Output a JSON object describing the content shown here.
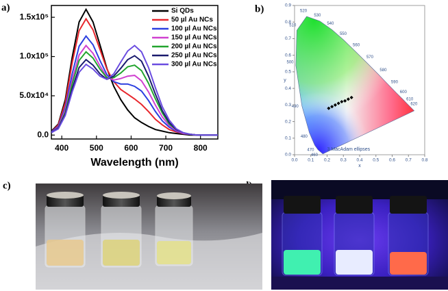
{
  "panels": {
    "labels": [
      "a)",
      "b)",
      "c)",
      "d)"
    ]
  },
  "chart_data": [
    {
      "type": "line",
      "xlabel": "Wavelength (nm)",
      "x": [
        370,
        390,
        410,
        430,
        450,
        470,
        490,
        510,
        530,
        550,
        570,
        590,
        610,
        630,
        650,
        670,
        690,
        710,
        730,
        750,
        770,
        790,
        810,
        830,
        850
      ],
      "xlim": [
        370,
        850
      ],
      "xticks": [
        400,
        500,
        600,
        700,
        800
      ],
      "ylim": [
        -5000,
        165000
      ],
      "yticks": [
        {
          "value": 0,
          "label": "0.0"
        },
        {
          "value": 50000,
          "label": "5.0x10⁴"
        },
        {
          "value": 100000,
          "label": "1.0x10⁵"
        },
        {
          "value": 150000,
          "label": "1.5x10⁵"
        }
      ],
      "legend": "upper right",
      "series": [
        {
          "name": "Si QDs",
          "color": "#000000",
          "values": [
            5000,
            14000,
            45000,
            99000,
            144000,
            160000,
            144000,
            115000,
            85000,
            62000,
            45000,
            32000,
            22000,
            16000,
            11000,
            7000,
            5000,
            3000,
            2000,
            1000,
            0,
            0,
            0,
            0,
            0
          ]
        },
        {
          "name": "50 µl Au NCs",
          "color": "#e8262c",
          "values": [
            4000,
            13000,
            41000,
            92000,
            133000,
            148000,
            134000,
            109000,
            84000,
            68000,
            58000,
            52000,
            46000,
            39000,
            30000,
            20000,
            13000,
            7000,
            4000,
            2000,
            1000,
            0,
            0,
            0,
            0
          ]
        },
        {
          "name": "100 µl Au NCs",
          "color": "#2b3fe0",
          "values": [
            4000,
            11000,
            35000,
            78000,
            113000,
            126000,
            115000,
            95000,
            77000,
            68000,
            65000,
            65000,
            62000,
            56000,
            44000,
            30000,
            18000,
            10000,
            5000,
            2000,
            1000,
            0,
            0,
            0,
            0
          ]
        },
        {
          "name": "150 µl Au NCs",
          "color": "#d040d0",
          "values": [
            3000,
            10000,
            32000,
            70000,
            102000,
            114000,
            104000,
            88000,
            74000,
            70000,
            72000,
            75000,
            76000,
            69000,
            55000,
            38000,
            23000,
            12000,
            6000,
            2000,
            1000,
            0,
            0,
            0,
            0
          ]
        },
        {
          "name": "200 µl Au NCs",
          "color": "#22a52e",
          "values": [
            3000,
            9000,
            29000,
            65000,
            95000,
            106000,
            98000,
            84000,
            73000,
            73000,
            79000,
            87000,
            89000,
            82000,
            66000,
            46000,
            28000,
            14000,
            7000,
            3000,
            1000,
            0,
            0,
            0,
            0
          ]
        },
        {
          "name": "250 µl Au NCs",
          "color": "#1a1a6e",
          "values": [
            3000,
            9000,
            27000,
            59000,
            86000,
            96000,
            89000,
            78000,
            71000,
            75000,
            85000,
            96000,
            101000,
            94000,
            75000,
            52000,
            31000,
            16000,
            7000,
            3000,
            1000,
            0,
            0,
            0,
            0
          ]
        },
        {
          "name": "300 µl Au NCs",
          "color": "#6a4ce0",
          "values": [
            3000,
            8000,
            25000,
            55000,
            80000,
            90000,
            84000,
            75000,
            71000,
            78000,
            93000,
            107000,
            114000,
            106000,
            86000,
            60000,
            36000,
            19000,
            8000,
            3000,
            1000,
            0,
            0,
            0,
            0
          ]
        }
      ]
    },
    {
      "type": "scatter",
      "xlabel": "x",
      "ylabel": "y",
      "xlim": [
        0,
        0.8
      ],
      "ylim": [
        0,
        0.9
      ],
      "xticks": [
        {
          "value": 0,
          "label": "0.0"
        },
        0.1,
        0.2,
        0.3,
        0.4,
        0.5,
        0.6,
        0.7,
        0.8
      ],
      "yticks": [
        {
          "value": 0,
          "label": "0.0"
        },
        0.1,
        0.2,
        0.3,
        0.4,
        0.5,
        0.6,
        0.7,
        0.8,
        0.9
      ],
      "x": [
        0.21,
        0.23,
        0.25,
        0.27,
        0.29,
        0.31,
        0.33,
        0.35
      ],
      "values": [
        0.28,
        0.29,
        0.3,
        0.31,
        0.32,
        0.325,
        0.335,
        0.345
      ],
      "color": "#000000",
      "annotations": [
        "3  MacAdam ellipses"
      ],
      "wavelength_labels": [
        "460",
        "470",
        "480",
        "490",
        "500",
        "510",
        "520",
        "530",
        "540",
        "550",
        "560",
        "570",
        "580",
        "590",
        "600",
        "610",
        "620"
      ]
    }
  ]
}
